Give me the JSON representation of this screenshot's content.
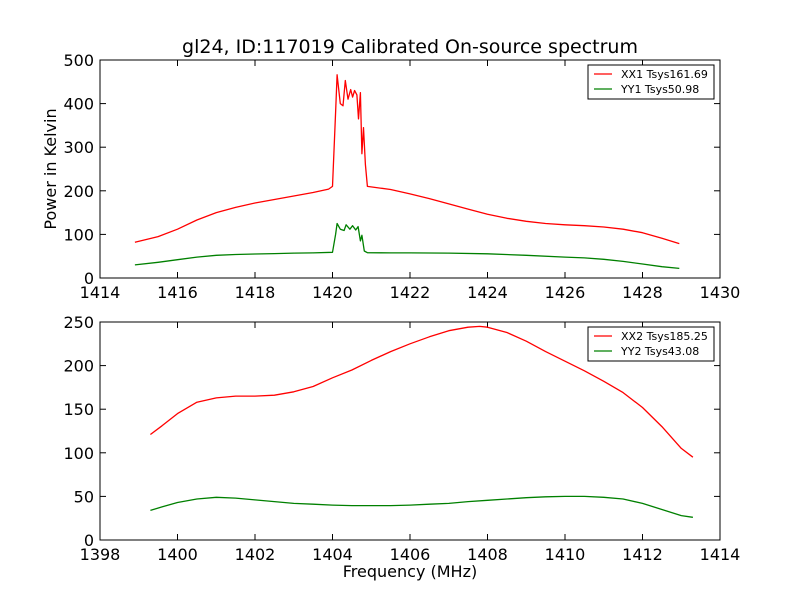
{
  "chart_data": [
    {
      "type": "line",
      "title": "gl24, ID:117019 Calibrated On-source spectrum",
      "xlabel": "",
      "ylabel": "Power in Kelvin",
      "xlim": [
        1414,
        1430
      ],
      "ylim": [
        0,
        500
      ],
      "xticks": [
        "1414",
        "1416",
        "1418",
        "1420",
        "1422",
        "1424",
        "1426",
        "1428",
        "1430"
      ],
      "yticks": [
        "0",
        "100",
        "200",
        "300",
        "400",
        "500"
      ],
      "legend_position": "top-right",
      "series": [
        {
          "name": "XX1 Tsys161.69",
          "color": "#ff0000",
          "points": [
            [
              1414.9,
              82
            ],
            [
              1415.5,
              95
            ],
            [
              1416.0,
              112
            ],
            [
              1416.5,
              133
            ],
            [
              1417.0,
              150
            ],
            [
              1417.5,
              162
            ],
            [
              1418.0,
              172
            ],
            [
              1418.5,
              180
            ],
            [
              1419.0,
              188
            ],
            [
              1419.5,
              196
            ],
            [
              1419.9,
              204
            ],
            [
              1420.0,
              210
            ],
            [
              1420.08,
              380
            ],
            [
              1420.12,
              466
            ],
            [
              1420.2,
              400
            ],
            [
              1420.27,
              395
            ],
            [
              1420.33,
              453
            ],
            [
              1420.4,
              410
            ],
            [
              1420.47,
              432
            ],
            [
              1420.52,
              415
            ],
            [
              1420.57,
              430
            ],
            [
              1420.63,
              420
            ],
            [
              1420.67,
              365
            ],
            [
              1420.72,
              425
            ],
            [
              1420.76,
              285
            ],
            [
              1420.8,
              345
            ],
            [
              1420.85,
              260
            ],
            [
              1420.9,
              210
            ],
            [
              1421.5,
              203
            ],
            [
              1422.0,
              193
            ],
            [
              1422.5,
              182
            ],
            [
              1423.0,
              170
            ],
            [
              1423.5,
              158
            ],
            [
              1424.0,
              146
            ],
            [
              1424.5,
              137
            ],
            [
              1425.0,
              130
            ],
            [
              1425.5,
              125
            ],
            [
              1426.0,
              122
            ],
            [
              1426.5,
              120
            ],
            [
              1427.0,
              117
            ],
            [
              1427.5,
              112
            ],
            [
              1428.0,
              104
            ],
            [
              1428.5,
              91
            ],
            [
              1428.95,
              79
            ]
          ]
        },
        {
          "name": "YY1 Tsys50.98",
          "color": "#008000",
          "points": [
            [
              1414.9,
              30
            ],
            [
              1415.5,
              36
            ],
            [
              1416.0,
              42
            ],
            [
              1416.5,
              48
            ],
            [
              1417.0,
              52
            ],
            [
              1417.5,
              54
            ],
            [
              1418.0,
              55
            ],
            [
              1418.5,
              56
            ],
            [
              1419.0,
              57
            ],
            [
              1419.5,
              57.5
            ],
            [
              1420.0,
              59
            ],
            [
              1420.08,
              100
            ],
            [
              1420.12,
              125
            ],
            [
              1420.2,
              112
            ],
            [
              1420.3,
              109
            ],
            [
              1420.35,
              122
            ],
            [
              1420.45,
              112
            ],
            [
              1420.52,
              120
            ],
            [
              1420.6,
              110
            ],
            [
              1420.66,
              118
            ],
            [
              1420.72,
              85
            ],
            [
              1420.76,
              98
            ],
            [
              1420.82,
              62
            ],
            [
              1420.9,
              58
            ],
            [
              1421.5,
              57.5
            ],
            [
              1422.0,
              57.5
            ],
            [
              1423.0,
              57
            ],
            [
              1424.0,
              55.5
            ],
            [
              1425.0,
              52
            ],
            [
              1426.0,
              48
            ],
            [
              1426.5,
              46
            ],
            [
              1427.0,
              43
            ],
            [
              1427.5,
              38
            ],
            [
              1428.0,
              32
            ],
            [
              1428.5,
              26
            ],
            [
              1428.95,
              22
            ]
          ]
        }
      ]
    },
    {
      "type": "line",
      "title": "",
      "xlabel": "Frequency (MHz)",
      "ylabel": "",
      "xlim": [
        1398,
        1414
      ],
      "ylim": [
        0,
        250
      ],
      "xticks": [
        "1398",
        "1400",
        "1402",
        "1404",
        "1406",
        "1408",
        "1410",
        "1412",
        "1414"
      ],
      "yticks": [
        "0",
        "50",
        "100",
        "150",
        "200",
        "250"
      ],
      "legend_position": "top-right",
      "series": [
        {
          "name": "XX2 Tsys185.25",
          "color": "#ff0000",
          "points": [
            [
              1399.3,
              121
            ],
            [
              1399.6,
              131
            ],
            [
              1400.0,
              145
            ],
            [
              1400.5,
              158
            ],
            [
              1401.0,
              163
            ],
            [
              1401.5,
              165
            ],
            [
              1402.0,
              165
            ],
            [
              1402.5,
              166
            ],
            [
              1403.0,
              170
            ],
            [
              1403.5,
              176
            ],
            [
              1404.0,
              186
            ],
            [
              1404.5,
              195
            ],
            [
              1405.0,
              206
            ],
            [
              1405.5,
              216
            ],
            [
              1406.0,
              225
            ],
            [
              1406.5,
              233
            ],
            [
              1407.0,
              240
            ],
            [
              1407.5,
              244
            ],
            [
              1407.8,
              245
            ],
            [
              1408.0,
              244
            ],
            [
              1408.5,
              238
            ],
            [
              1409.0,
              228
            ],
            [
              1409.5,
              216
            ],
            [
              1410.0,
              205
            ],
            [
              1410.5,
              194
            ],
            [
              1411.0,
              182
            ],
            [
              1411.5,
              169
            ],
            [
              1412.0,
              152
            ],
            [
              1412.5,
              130
            ],
            [
              1413.0,
              105
            ],
            [
              1413.3,
              95
            ]
          ]
        },
        {
          "name": "YY2 Tsys43.08",
          "color": "#008000",
          "points": [
            [
              1399.3,
              34
            ],
            [
              1399.6,
              38
            ],
            [
              1400.0,
              43
            ],
            [
              1400.5,
              47
            ],
            [
              1401.0,
              49
            ],
            [
              1401.5,
              48
            ],
            [
              1402.0,
              46
            ],
            [
              1402.5,
              44
            ],
            [
              1403.0,
              42
            ],
            [
              1403.5,
              41
            ],
            [
              1404.0,
              40
            ],
            [
              1404.5,
              39.5
            ],
            [
              1405.0,
              39.5
            ],
            [
              1405.5,
              39.5
            ],
            [
              1406.0,
              40
            ],
            [
              1406.5,
              41
            ],
            [
              1407.0,
              42
            ],
            [
              1407.5,
              44
            ],
            [
              1408.0,
              45.5
            ],
            [
              1408.5,
              47
            ],
            [
              1409.0,
              48.5
            ],
            [
              1409.5,
              49.5
            ],
            [
              1410.0,
              50
            ],
            [
              1410.5,
              50
            ],
            [
              1411.0,
              49
            ],
            [
              1411.5,
              47
            ],
            [
              1412.0,
              42
            ],
            [
              1412.5,
              35
            ],
            [
              1413.0,
              28
            ],
            [
              1413.3,
              26
            ]
          ]
        }
      ]
    }
  ]
}
